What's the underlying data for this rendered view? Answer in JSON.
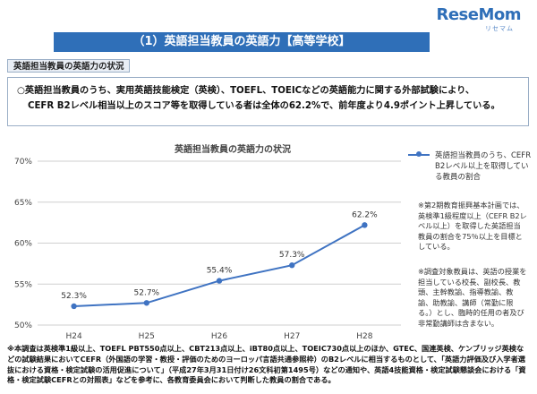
{
  "logo": {
    "text": "ReseMom",
    "sub": "リセマム"
  },
  "header": {
    "title": "（1）英語担当教員の英語力【高等学校】"
  },
  "section": {
    "tag": "英語担当教員の英語力の状況"
  },
  "summary": {
    "line1": "○英語担当教員のうち、実用英語技能検定（英検）、TOEFL、TOEICなどの英語能力に関する外部試験により、",
    "line2": "CEFR B2レベル相当以上のスコア等を取得している者は全体の62.2%で、前年度より4.9ポイント上昇している。"
  },
  "legend": {
    "label": "英語担当教員のうち、CEFR B2レベル以上を取得している教員の割合"
  },
  "notes": {
    "note1": "※第2期教育振興基本計画では、英検準1級程度以上（CEFR B2レベル以上）を取得した英語担当教員の割合を75％以上を目標としている。",
    "note2": "※調査対象教員は、英語の授業を担当している校長、副校長、教頭、主幹教諭、指導教諭、教諭、助教諭、講師（常勤に限る。）とし、臨時的任用の者及び非常勤講師は含まない。"
  },
  "footnote": {
    "text": "※本調査は英検準1級以上、TOEFL PBT550点以上、CBT213点以上、iBT80点以上、TOEIC730点以上のほか、GTEC、国連英検、ケンブリッジ英検などの試験結果においてCEFR（外国語の学習・教授・評価のためのヨーロッパ言語共通参照枠）のB2レベルに相当するものとして、「英語力評価及び入学者選抜における資格・検定試験の活用促進について」（平成27年3月31日付け26文科初第1495号）などの通知や、英語4技能資格・検定試験懇談会における「資格・検定試験CEFRとの対照表」などを参考に、各教育委員会において判断した教員の割合である。"
  },
  "chart_data": {
    "type": "line",
    "title": "英語担当教員の英語力の状況",
    "categories": [
      "H24",
      "H25",
      "H26",
      "H27",
      "H28"
    ],
    "series": [
      {
        "name": "英語担当教員のうち、CEFR B2レベル以上を取得している教員の割合",
        "values": [
          52.3,
          52.7,
          55.4,
          57.3,
          62.2
        ]
      }
    ],
    "data_labels": [
      "52.3%",
      "52.7%",
      "55.4%",
      "57.3%",
      "62.2%"
    ],
    "yticks": [
      "50%",
      "55%",
      "60%",
      "65%",
      "70%"
    ],
    "ylim": [
      50,
      70
    ],
    "grid": true,
    "color": "#3f73c2"
  }
}
